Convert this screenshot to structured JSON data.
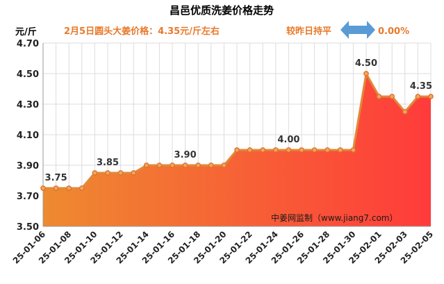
{
  "title": "昌邑优质洗姜价格走势",
  "unit_label": "元/斤",
  "subtitle": "2月5日圆头大姜价格：4.35元/斤左右",
  "compare_label": "较昨日持平",
  "change_value": "0.00%",
  "source_text": "中姜网监制（www.jiang7.com）",
  "colors": {
    "line": "#e08a3a",
    "fill_top": "#ff3b3b",
    "fill_bottom": "#ee8a30",
    "arrow": "#5b9bd5",
    "subtitle": "#e8792a"
  },
  "chart_data": {
    "type": "area",
    "title": "昌邑优质洗姜价格走势",
    "ylabel": "元/斤",
    "ylim": [
      3.5,
      4.7
    ],
    "yticks": [
      "3.50",
      "3.70",
      "3.90",
      "4.10",
      "4.30",
      "4.50",
      "4.70"
    ],
    "grid": true,
    "dates": [
      "25-01-06",
      "25-01-07",
      "25-01-08",
      "25-01-09",
      "25-01-10",
      "25-01-11",
      "25-01-12",
      "25-01-13",
      "25-01-14",
      "25-01-15",
      "25-01-16",
      "25-01-17",
      "25-01-18",
      "25-01-19",
      "25-01-20",
      "25-01-21",
      "25-01-22",
      "25-01-23",
      "25-01-24",
      "25-01-25",
      "25-01-26",
      "25-01-27",
      "25-01-28",
      "25-01-29",
      "25-01-30",
      "25-01-31",
      "25-02-01",
      "25-02-02",
      "25-02-03",
      "25-02-04",
      "25-02-05"
    ],
    "values": [
      3.75,
      3.75,
      3.75,
      3.75,
      3.85,
      3.85,
      3.85,
      3.85,
      3.9,
      3.9,
      3.9,
      3.9,
      3.9,
      3.9,
      3.9,
      4.0,
      4.0,
      4.0,
      4.0,
      4.0,
      4.0,
      4.0,
      4.0,
      4.0,
      4.0,
      4.5,
      4.35,
      4.35,
      4.25,
      4.35,
      4.35
    ],
    "xtick_labels": [
      "25-01-06",
      "25-01-08",
      "25-01-10",
      "25-01-12",
      "25-01-14",
      "25-01-16",
      "25-01-18",
      "25-01-20",
      "25-01-22",
      "25-01-24",
      "25-01-26",
      "25-01-28",
      "25-01-30",
      "25-02-01",
      "25-02-03",
      "25-02-05"
    ],
    "annotations": [
      {
        "date": "25-01-07",
        "text": "3.75"
      },
      {
        "date": "25-01-11",
        "text": "3.85"
      },
      {
        "date": "25-01-17",
        "text": "3.90"
      },
      {
        "date": "25-01-25",
        "text": "4.00"
      },
      {
        "date": "25-01-31",
        "text": "4.50"
      },
      {
        "date": "25-02-05",
        "text": "4.35"
      }
    ]
  }
}
